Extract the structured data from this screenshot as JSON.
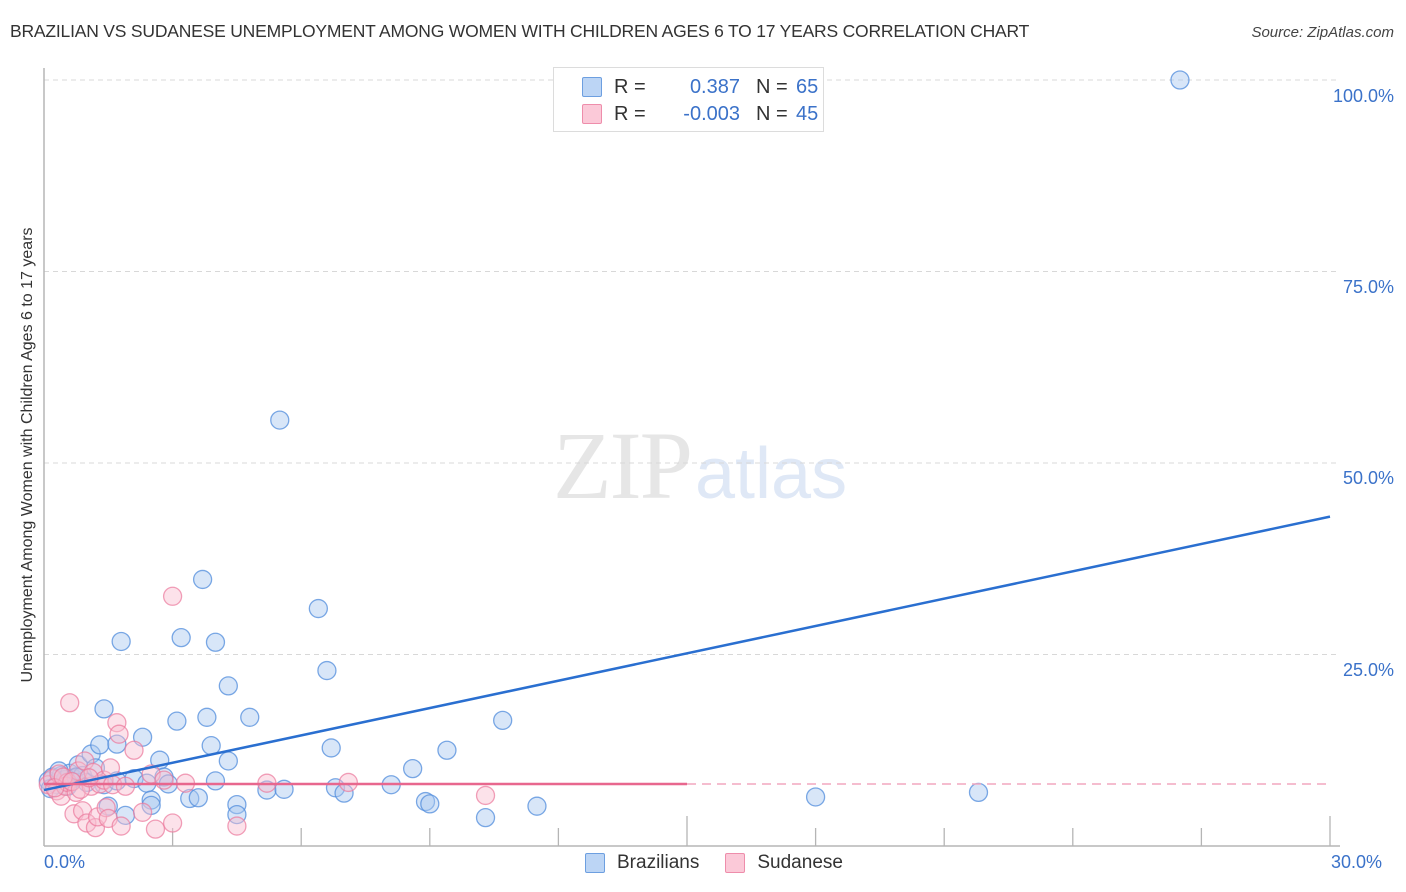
{
  "header": {
    "title": "BRAZILIAN VS SUDANESE UNEMPLOYMENT AMONG WOMEN WITH CHILDREN AGES 6 TO 17 YEARS CORRELATION CHART",
    "source": "Source: ZipAtlas.com"
  },
  "watermark": {
    "zip": "ZIP",
    "atlas": "atlas"
  },
  "legend": {
    "rows": [
      {
        "series": "Brazilians",
        "r_label": "R =",
        "r_value": "0.387",
        "n_label": "N =",
        "n_value": "65",
        "color": "#a9c8f0",
        "border": "#6d9fe0"
      },
      {
        "series": "Sudanese",
        "r_label": "R =",
        "r_value": "-0.003",
        "n_label": "N =",
        "n_value": "45",
        "color": "#f9bfd0",
        "border": "#ee8dab"
      }
    ]
  },
  "bottom_legend": {
    "items": [
      {
        "label": "Brazilians"
      },
      {
        "label": "Sudanese"
      }
    ]
  },
  "axes": {
    "y_label": "Unemployment Among Women with Children Ages 6 to 17 years",
    "y_ticks": [
      "100.0%",
      "75.0%",
      "50.0%",
      "25.0%"
    ],
    "x_ticks": [
      "0.0%",
      "30.0%"
    ]
  },
  "colors": {
    "blue": "#3b72c9",
    "blue_line": "#2a6fd0",
    "pink_line": "#e8678e",
    "grid": "#d8d8d8",
    "axis": "#b5b5b5"
  },
  "chart_data": {
    "type": "scatter",
    "title": "BRAZILIAN VS SUDANESE UNEMPLOYMENT AMONG WOMEN WITH CHILDREN AGES 6 TO 17 YEARS CORRELATION CHART",
    "xlabel": "",
    "ylabel": "Unemployment Among Women with Children Ages 6 to 17 years",
    "xlim": [
      0,
      30
    ],
    "ylim": [
      0,
      100
    ],
    "x_ticks": [
      0,
      30
    ],
    "y_ticks": [
      25,
      50,
      75,
      100
    ],
    "grid": "horizontal dashed",
    "legend_position": "top-center and bottom",
    "series": [
      {
        "name": "Brazilians",
        "R": 0.387,
        "N": 65,
        "trend": {
          "x": [
            0,
            30
          ],
          "y": [
            7.3,
            43.0
          ]
        },
        "points": [
          [
            0.1,
            8.5
          ],
          [
            0.2,
            9.0
          ],
          [
            0.3,
            8.0
          ],
          [
            0.4,
            9.2
          ],
          [
            0.5,
            8.7
          ],
          [
            0.6,
            9.5
          ],
          [
            0.7,
            8.8
          ],
          [
            0.8,
            10.6
          ],
          [
            0.9,
            9.2
          ],
          [
            1.0,
            8.3
          ],
          [
            1.1,
            12.0
          ],
          [
            1.2,
            10.2
          ],
          [
            1.3,
            13.2
          ],
          [
            1.4,
            8.0
          ],
          [
            1.4,
            17.9
          ],
          [
            1.5,
            5.2
          ],
          [
            1.7,
            8.5
          ],
          [
            1.7,
            13.3
          ],
          [
            1.8,
            26.7
          ],
          [
            1.9,
            4.0
          ],
          [
            2.1,
            8.8
          ],
          [
            2.3,
            14.2
          ],
          [
            2.4,
            8.2
          ],
          [
            2.5,
            6.0
          ],
          [
            2.5,
            5.3
          ],
          [
            2.7,
            11.2
          ],
          [
            2.8,
            9.0
          ],
          [
            2.9,
            8.1
          ],
          [
            3.1,
            16.3
          ],
          [
            3.2,
            27.2
          ],
          [
            3.4,
            6.2
          ],
          [
            3.6,
            6.3
          ],
          [
            3.7,
            34.8
          ],
          [
            3.8,
            16.8
          ],
          [
            3.9,
            13.1
          ],
          [
            4.0,
            8.5
          ],
          [
            4.0,
            26.6
          ],
          [
            4.3,
            11.1
          ],
          [
            4.3,
            20.9
          ],
          [
            4.5,
            5.4
          ],
          [
            4.5,
            4.1
          ],
          [
            4.8,
            16.8
          ],
          [
            5.2,
            7.3
          ],
          [
            5.5,
            55.6
          ],
          [
            5.6,
            7.4
          ],
          [
            6.4,
            31.0
          ],
          [
            6.6,
            22.9
          ],
          [
            6.7,
            12.8
          ],
          [
            6.8,
            7.6
          ],
          [
            7.0,
            6.9
          ],
          [
            8.1,
            8.0
          ],
          [
            8.6,
            10.1
          ],
          [
            8.9,
            5.8
          ],
          [
            9.0,
            5.5
          ],
          [
            9.4,
            12.5
          ],
          [
            10.3,
            3.7
          ],
          [
            10.7,
            16.4
          ],
          [
            11.5,
            5.2
          ],
          [
            18.0,
            6.4
          ],
          [
            21.8,
            7.0
          ],
          [
            26.5,
            100.0
          ],
          [
            0.15,
            7.5
          ],
          [
            0.35,
            9.8
          ],
          [
            0.55,
            7.8
          ],
          [
            0.75,
            9.0
          ]
        ]
      },
      {
        "name": "Sudanese",
        "R": -0.003,
        "N": 45,
        "trend": {
          "x": [
            0,
            15
          ],
          "y": [
            8.1,
            8.1
          ],
          "dashed_extension": {
            "x": [
              15,
              30
            ],
            "y": [
              8.1,
              8.1
            ]
          }
        },
        "points": [
          [
            0.1,
            8.0
          ],
          [
            0.2,
            8.8
          ],
          [
            0.3,
            7.2
          ],
          [
            0.35,
            9.4
          ],
          [
            0.4,
            6.5
          ],
          [
            0.5,
            7.8
          ],
          [
            0.55,
            8.3
          ],
          [
            0.6,
            18.7
          ],
          [
            0.7,
            4.2
          ],
          [
            0.75,
            7.0
          ],
          [
            0.8,
            9.8
          ],
          [
            0.9,
            4.6
          ],
          [
            0.95,
            11.1
          ],
          [
            1.0,
            3.0
          ],
          [
            1.1,
            7.8
          ],
          [
            1.15,
            9.6
          ],
          [
            1.2,
            2.4
          ],
          [
            1.25,
            3.8
          ],
          [
            1.3,
            8.1
          ],
          [
            1.4,
            8.6
          ],
          [
            1.45,
            5.0
          ],
          [
            1.5,
            3.6
          ],
          [
            1.55,
            10.2
          ],
          [
            1.6,
            8.0
          ],
          [
            1.7,
            16.1
          ],
          [
            1.75,
            14.6
          ],
          [
            1.8,
            2.6
          ],
          [
            1.9,
            7.8
          ],
          [
            2.1,
            12.5
          ],
          [
            2.3,
            4.4
          ],
          [
            2.5,
            9.4
          ],
          [
            2.6,
            2.2
          ],
          [
            2.8,
            8.6
          ],
          [
            3.0,
            3.0
          ],
          [
            3.0,
            32.6
          ],
          [
            3.3,
            8.2
          ],
          [
            4.5,
            2.6
          ],
          [
            5.2,
            8.2
          ],
          [
            7.1,
            8.3
          ],
          [
            10.3,
            6.6
          ],
          [
            0.25,
            7.6
          ],
          [
            0.45,
            9.0
          ],
          [
            0.65,
            8.4
          ],
          [
            0.85,
            7.4
          ],
          [
            1.05,
            8.9
          ]
        ]
      }
    ]
  }
}
